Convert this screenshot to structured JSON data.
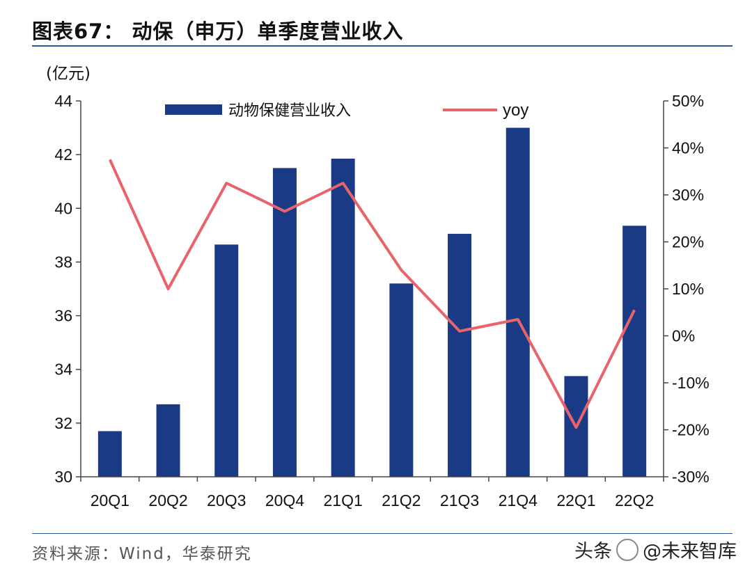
{
  "figure_title": "图表67： 动保（申万）单季度营业收入",
  "unit_label": "(亿元)",
  "source": "资料来源：Wind，华泰研究",
  "watermark": {
    "prefix": "头条",
    "handle": "@未来智库"
  },
  "colors": {
    "bar": "#1a3a85",
    "line": "#e8646a",
    "rule": "#2b5797"
  },
  "chart_data": {
    "type": "bar",
    "title": "动保（申万）单季度营业收入",
    "categories": [
      "20Q1",
      "20Q2",
      "20Q3",
      "20Q4",
      "21Q1",
      "21Q2",
      "21Q3",
      "21Q4",
      "22Q1",
      "22Q2"
    ],
    "series": [
      {
        "name": "动物保健营业收入",
        "type": "bar",
        "axis": "left",
        "values": [
          31.7,
          32.7,
          38.65,
          41.5,
          41.85,
          37.2,
          39.05,
          43.0,
          33.75,
          39.35
        ]
      },
      {
        "name": "yoy",
        "type": "line",
        "axis": "right",
        "values": [
          37.5,
          10.0,
          32.5,
          26.5,
          32.5,
          14.0,
          1.0,
          3.5,
          -19.5,
          5.5
        ]
      }
    ],
    "ylim": [
      30,
      44
    ],
    "yticks": [
      "30",
      "32",
      "34",
      "36",
      "38",
      "40",
      "42",
      "44"
    ],
    "y2lim": [
      -30,
      50
    ],
    "y2ticks": [
      "-30%",
      "-20%",
      "-10%",
      "0%",
      "10%",
      "20%",
      "30%",
      "40%",
      "50%"
    ],
    "ylabel": "(亿元)",
    "legend": [
      "动物保健营业收入",
      "yoy"
    ]
  }
}
